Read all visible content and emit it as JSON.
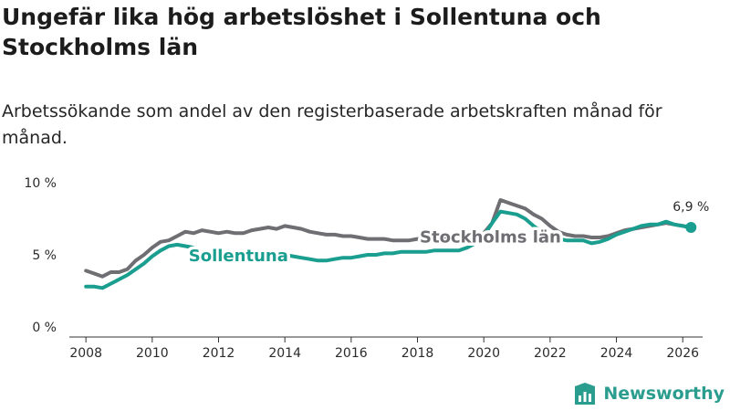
{
  "title": "Ungefär lika hög arbetslöshet i Sollentuna och Stockholms län",
  "subtitle": "Arbetssökande som andel av den registerbaserade arbetskraften månad för månad.",
  "logo": {
    "text": "Newsworthy",
    "icon": "newsworthy-logo-icon"
  },
  "colors": {
    "sollentuna": "#1a9e8f",
    "stockholm": "#6e6e73",
    "background": "#ffffff"
  },
  "chart_data": {
    "type": "line",
    "title": "Ungefär lika hög arbetslöshet i Sollentuna och Stockholms län",
    "subtitle": "Arbetssökande som andel av den registerbaserade arbetskraften månad för månad.",
    "xlabel": "",
    "ylabel": "",
    "xlim": [
      2007.5,
      2026.6
    ],
    "ylim": [
      0,
      10
    ],
    "x_ticks": [
      2008,
      2010,
      2012,
      2014,
      2016,
      2018,
      2020,
      2022,
      2024,
      2026
    ],
    "y_ticks": [
      {
        "value": 0,
        "label": "0 %"
      },
      {
        "value": 5,
        "label": "5 %"
      },
      {
        "value": 10,
        "label": "10 %"
      }
    ],
    "grid": false,
    "last_value_label": "6,9 %",
    "series": [
      {
        "name": "Stockholms län",
        "label": "Stockholms län",
        "color": "#6e6e73",
        "label_at": [
          2020.2,
          6.3
        ],
        "points": [
          [
            2008.0,
            3.9
          ],
          [
            2008.25,
            3.7
          ],
          [
            2008.5,
            3.5
          ],
          [
            2008.75,
            3.8
          ],
          [
            2009.0,
            3.8
          ],
          [
            2009.25,
            4.0
          ],
          [
            2009.5,
            4.6
          ],
          [
            2009.75,
            5.0
          ],
          [
            2010.0,
            5.5
          ],
          [
            2010.25,
            5.9
          ],
          [
            2010.5,
            6.0
          ],
          [
            2010.75,
            6.3
          ],
          [
            2011.0,
            6.6
          ],
          [
            2011.25,
            6.5
          ],
          [
            2011.5,
            6.7
          ],
          [
            2011.75,
            6.6
          ],
          [
            2012.0,
            6.5
          ],
          [
            2012.25,
            6.6
          ],
          [
            2012.5,
            6.5
          ],
          [
            2012.75,
            6.5
          ],
          [
            2013.0,
            6.7
          ],
          [
            2013.25,
            6.8
          ],
          [
            2013.5,
            6.9
          ],
          [
            2013.75,
            6.8
          ],
          [
            2014.0,
            7.0
          ],
          [
            2014.25,
            6.9
          ],
          [
            2014.5,
            6.8
          ],
          [
            2014.75,
            6.6
          ],
          [
            2015.0,
            6.5
          ],
          [
            2015.25,
            6.4
          ],
          [
            2015.5,
            6.4
          ],
          [
            2015.75,
            6.3
          ],
          [
            2016.0,
            6.3
          ],
          [
            2016.25,
            6.2
          ],
          [
            2016.5,
            6.1
          ],
          [
            2016.75,
            6.1
          ],
          [
            2017.0,
            6.1
          ],
          [
            2017.25,
            6.0
          ],
          [
            2017.5,
            6.0
          ],
          [
            2017.75,
            6.0
          ],
          [
            2018.0,
            6.1
          ],
          [
            2018.25,
            6.1
          ],
          [
            2018.5,
            6.1
          ],
          [
            2018.75,
            6.1
          ],
          [
            2019.0,
            6.1
          ],
          [
            2019.25,
            6.2
          ],
          [
            2019.5,
            6.3
          ],
          [
            2019.75,
            6.4
          ],
          [
            2020.0,
            6.5
          ],
          [
            2020.25,
            7.2
          ],
          [
            2020.5,
            8.8
          ],
          [
            2020.75,
            8.6
          ],
          [
            2021.0,
            8.4
          ],
          [
            2021.25,
            8.2
          ],
          [
            2021.5,
            7.8
          ],
          [
            2021.75,
            7.5
          ],
          [
            2022.0,
            7.0
          ],
          [
            2022.25,
            6.6
          ],
          [
            2022.5,
            6.4
          ],
          [
            2022.75,
            6.3
          ],
          [
            2023.0,
            6.3
          ],
          [
            2023.25,
            6.2
          ],
          [
            2023.5,
            6.2
          ],
          [
            2023.75,
            6.3
          ],
          [
            2024.0,
            6.5
          ],
          [
            2024.25,
            6.7
          ],
          [
            2024.5,
            6.8
          ],
          [
            2024.75,
            6.9
          ],
          [
            2025.0,
            7.0
          ],
          [
            2025.25,
            7.1
          ],
          [
            2025.5,
            7.2
          ],
          [
            2025.75,
            7.1
          ],
          [
            2026.0,
            7.0
          ],
          [
            2026.25,
            6.9
          ]
        ]
      },
      {
        "name": "Sollentuna",
        "label": "Sollentuna",
        "color": "#1a9e8f",
        "label_at": [
          2012.6,
          5.0
        ],
        "points": [
          [
            2008.0,
            2.8
          ],
          [
            2008.25,
            2.8
          ],
          [
            2008.5,
            2.7
          ],
          [
            2008.75,
            3.0
          ],
          [
            2009.0,
            3.3
          ],
          [
            2009.25,
            3.6
          ],
          [
            2009.5,
            4.0
          ],
          [
            2009.75,
            4.4
          ],
          [
            2010.0,
            4.9
          ],
          [
            2010.25,
            5.3
          ],
          [
            2010.5,
            5.6
          ],
          [
            2010.75,
            5.7
          ],
          [
            2011.0,
            5.6
          ],
          [
            2011.25,
            5.5
          ],
          [
            2011.5,
            5.2
          ],
          [
            2011.75,
            5.2
          ],
          [
            2012.0,
            5.2
          ],
          [
            2012.25,
            5.1
          ],
          [
            2012.5,
            5.1
          ],
          [
            2012.75,
            5.0
          ],
          [
            2013.0,
            5.1
          ],
          [
            2013.25,
            5.2
          ],
          [
            2013.5,
            5.1
          ],
          [
            2013.75,
            5.0
          ],
          [
            2014.0,
            5.0
          ],
          [
            2014.25,
            4.9
          ],
          [
            2014.5,
            4.8
          ],
          [
            2014.75,
            4.7
          ],
          [
            2015.0,
            4.6
          ],
          [
            2015.25,
            4.6
          ],
          [
            2015.5,
            4.7
          ],
          [
            2015.75,
            4.8
          ],
          [
            2016.0,
            4.8
          ],
          [
            2016.25,
            4.9
          ],
          [
            2016.5,
            5.0
          ],
          [
            2016.75,
            5.0
          ],
          [
            2017.0,
            5.1
          ],
          [
            2017.25,
            5.1
          ],
          [
            2017.5,
            5.2
          ],
          [
            2017.75,
            5.2
          ],
          [
            2018.0,
            5.2
          ],
          [
            2018.25,
            5.2
          ],
          [
            2018.5,
            5.3
          ],
          [
            2018.75,
            5.3
          ],
          [
            2019.0,
            5.3
          ],
          [
            2019.25,
            5.3
          ],
          [
            2019.5,
            5.5
          ],
          [
            2019.75,
            5.8
          ],
          [
            2020.0,
            6.3
          ],
          [
            2020.25,
            7.2
          ],
          [
            2020.5,
            8.0
          ],
          [
            2020.75,
            7.9
          ],
          [
            2021.0,
            7.8
          ],
          [
            2021.25,
            7.5
          ],
          [
            2021.5,
            7.0
          ],
          [
            2021.75,
            6.6
          ],
          [
            2022.0,
            6.3
          ],
          [
            2022.25,
            6.1
          ],
          [
            2022.5,
            6.0
          ],
          [
            2022.75,
            6.0
          ],
          [
            2023.0,
            6.0
          ],
          [
            2023.25,
            5.8
          ],
          [
            2023.5,
            5.9
          ],
          [
            2023.75,
            6.1
          ],
          [
            2024.0,
            6.4
          ],
          [
            2024.25,
            6.6
          ],
          [
            2024.5,
            6.8
          ],
          [
            2024.75,
            7.0
          ],
          [
            2025.0,
            7.1
          ],
          [
            2025.25,
            7.1
          ],
          [
            2025.5,
            7.3
          ],
          [
            2025.75,
            7.1
          ],
          [
            2026.0,
            7.0
          ],
          [
            2026.25,
            6.9
          ]
        ]
      }
    ]
  }
}
